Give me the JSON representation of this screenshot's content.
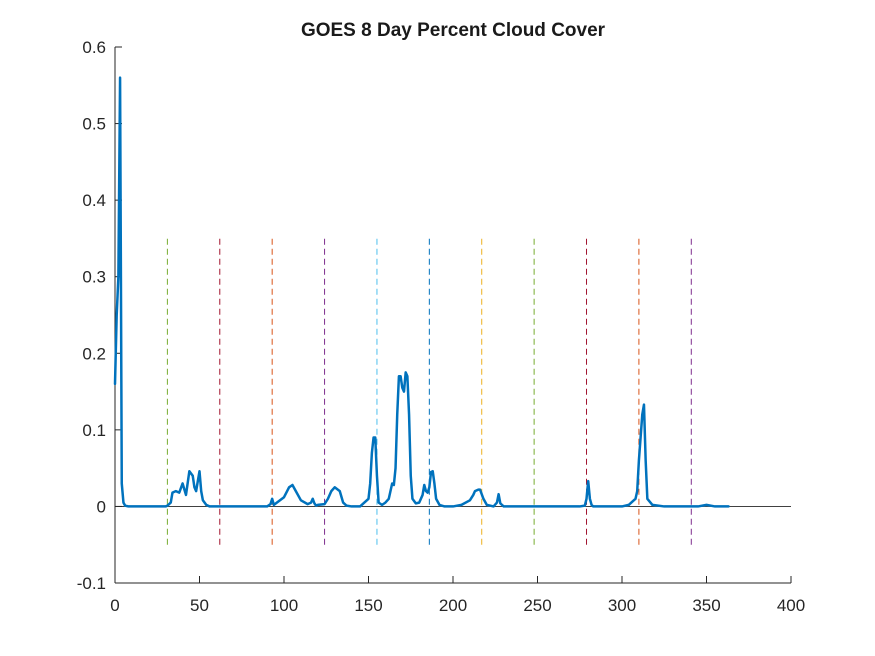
{
  "chart_data": {
    "type": "line",
    "title": "GOES 8 Day Percent Cloud Cover",
    "xlabel": "",
    "ylabel": "",
    "xlim": [
      0,
      400
    ],
    "ylim": [
      -0.1,
      0.6
    ],
    "xticks": [
      "0",
      "50",
      "100",
      "150",
      "200",
      "250",
      "300",
      "350",
      "400"
    ],
    "yticks": [
      "-0.1",
      "0",
      "0.1",
      "0.2",
      "0.3",
      "0.4",
      "0.5",
      "0.6"
    ],
    "grid": false,
    "zero_line": true,
    "series": [
      {
        "color": "#0072BD",
        "x": [
          0,
          1,
          2,
          3,
          3.5,
          4,
          5,
          6,
          8,
          10,
          15,
          20,
          25,
          30,
          31,
          33,
          34,
          36,
          38,
          40,
          42,
          44,
          46,
          47,
          48,
          50,
          51,
          52,
          54,
          56,
          60,
          70,
          80,
          90,
          92,
          93,
          94,
          100,
          103,
          105,
          107,
          110,
          114,
          116,
          117,
          118,
          119,
          120,
          124,
          126,
          128,
          130,
          133,
          135,
          137,
          140,
          145,
          150,
          151,
          152,
          153,
          154,
          155,
          156,
          158,
          160,
          162,
          163,
          164,
          165,
          166,
          167,
          168,
          169,
          170,
          171,
          172,
          173,
          174,
          175,
          176,
          178,
          180,
          182,
          183,
          184,
          185,
          186,
          187,
          188,
          189,
          190,
          192,
          195,
          200,
          205,
          210,
          212,
          213,
          215,
          216,
          218,
          220,
          224,
          226,
          227,
          228,
          230,
          240,
          250,
          260,
          270,
          275,
          278,
          279,
          280,
          281,
          282,
          283,
          285,
          290,
          300,
          304,
          306,
          308,
          309,
          310,
          311,
          312,
          313,
          314,
          315,
          318,
          325,
          335,
          345,
          350,
          355,
          363
        ],
        "y": [
          0.16,
          0.25,
          0.3,
          0.56,
          0.3,
          0.03,
          0.005,
          0.001,
          0,
          0,
          0,
          0,
          0,
          0,
          0.001,
          0.005,
          0.018,
          0.02,
          0.018,
          0.03,
          0.015,
          0.046,
          0.04,
          0.025,
          0.02,
          0.046,
          0.02,
          0.008,
          0.002,
          0,
          0,
          0,
          0,
          0,
          0.003,
          0.01,
          0.002,
          0.012,
          0.025,
          0.028,
          0.02,
          0.008,
          0.003,
          0.005,
          0.01,
          0.004,
          0.001,
          0.002,
          0.003,
          0.01,
          0.02,
          0.025,
          0.02,
          0.005,
          0.001,
          0,
          0,
          0.01,
          0.03,
          0.07,
          0.09,
          0.09,
          0.04,
          0.005,
          0.002,
          0.005,
          0.01,
          0.02,
          0.03,
          0.028,
          0.05,
          0.12,
          0.17,
          0.17,
          0.155,
          0.15,
          0.175,
          0.17,
          0.12,
          0.04,
          0.01,
          0.004,
          0.005,
          0.015,
          0.028,
          0.02,
          0.018,
          0.025,
          0.045,
          0.046,
          0.03,
          0.01,
          0.002,
          0,
          0,
          0.002,
          0.008,
          0.015,
          0.02,
          0.022,
          0.022,
          0.01,
          0.002,
          0,
          0.005,
          0.016,
          0.004,
          0,
          0,
          0,
          0,
          0,
          0,
          0.001,
          0.01,
          0.033,
          0.01,
          0.002,
          0,
          0,
          0,
          0,
          0.002,
          0.006,
          0.01,
          0.02,
          0.06,
          0.09,
          0.12,
          0.133,
          0.06,
          0.01,
          0.002,
          0,
          0,
          0,
          0.002,
          0,
          0
        ]
      }
    ],
    "vertical_lines": [
      {
        "x": 31,
        "color": "#77AC30"
      },
      {
        "x": 62,
        "color": "#A2142F"
      },
      {
        "x": 93,
        "color": "#D95319"
      },
      {
        "x": 124,
        "color": "#7E2F8E"
      },
      {
        "x": 155,
        "color": "#4DBEEE"
      },
      {
        "x": 186,
        "color": "#0072BD"
      },
      {
        "x": 217,
        "color": "#EDB120"
      },
      {
        "x": 248,
        "color": "#77AC30"
      },
      {
        "x": 279,
        "color": "#A2142F"
      },
      {
        "x": 310,
        "color": "#D95319"
      },
      {
        "x": 341,
        "color": "#7E2F8E"
      }
    ],
    "vertical_line_range": [
      -0.05,
      0.35
    ],
    "colors": {
      "axis": "#262626",
      "zero_line": "#262626",
      "background": "#ffffff"
    }
  }
}
